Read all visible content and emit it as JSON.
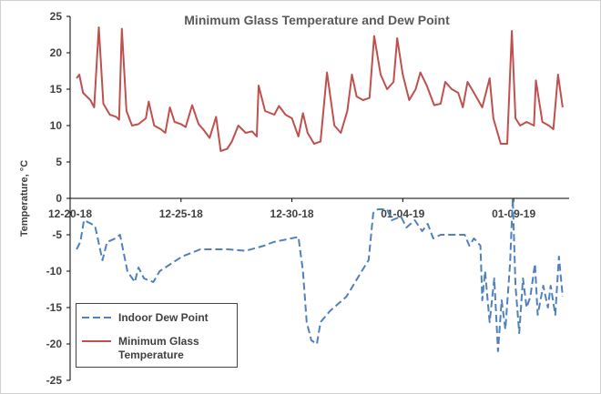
{
  "chart_data": {
    "type": "line",
    "title": "Minimum Glass Temperature and Dew Point",
    "y_label": "Temperature, °C",
    "xlim": [
      "2018-12-20 00:00",
      "2019-01-11 12:00"
    ],
    "xticks": [
      {
        "value": "2018-12-20",
        "label": "12-20-18"
      },
      {
        "value": "2018-12-25",
        "label": "12-25-18"
      },
      {
        "value": "2018-12-30",
        "label": "12-30-18"
      },
      {
        "value": "2019-01-04",
        "label": "01-04-19"
      },
      {
        "value": "2019-01-09",
        "label": "01-09-19"
      }
    ],
    "ylim": [
      -25,
      25
    ],
    "yticks": [
      -25,
      -20,
      -15,
      -10,
      -5,
      0,
      5,
      10,
      15,
      20,
      25
    ],
    "grid": false,
    "legend": "lower-left",
    "series": [
      {
        "name": "Indoor Dew Point",
        "color": "#4f81bd",
        "dashed": true,
        "x": [
          "2018-12-20 07:00",
          "2018-12-20 11:00",
          "2018-12-20 15:00",
          "2018-12-20 23:00",
          "2018-12-21 03:00",
          "2018-12-21 11:00",
          "2018-12-21 16:00",
          "2018-12-22 01:00",
          "2018-12-22 06:00",
          "2018-12-22 14:00",
          "2018-12-22 22:00",
          "2018-12-23 02:00",
          "2018-12-23 08:00",
          "2018-12-23 18:00",
          "2018-12-24 01:00",
          "2018-12-25 01:00",
          "2018-12-25 21:00",
          "2018-12-27 02:00",
          "2018-12-27 22:00",
          "2018-12-28 18:00",
          "2018-12-29 04:00",
          "2018-12-30 07:00",
          "2018-12-30 12:00",
          "2018-12-30 16:00",
          "2018-12-30 21:00",
          "2018-12-31 03:00",
          "2018-12-31 07:00",
          "2018-12-31 17:00",
          "2019-01-01 11:00",
          "2019-01-02 06:00",
          "2019-01-02 11:00",
          "2019-01-02 16:00",
          "2019-01-02 21:00",
          "2019-01-03 07:00",
          "2019-01-03 12:00",
          "2019-01-03 22:00",
          "2019-01-04 04:00",
          "2019-01-04 13:00",
          "2019-01-04 21:00",
          "2019-01-05 03:00",
          "2019-01-05 09:00",
          "2019-01-05 17:00",
          "2019-01-06 09:00",
          "2019-01-06 19:00",
          "2019-01-07 00:00",
          "2019-01-07 05:00",
          "2019-01-07 12:00",
          "2019-01-07 14:00",
          "2019-01-07 17:00",
          "2019-01-07 22:00",
          "2019-01-08 03:00",
          "2019-01-08 07:00",
          "2019-01-08 11:00",
          "2019-01-08 15:00",
          "2019-01-08 20:00",
          "2019-01-08 23:00",
          "2019-01-09 02:00",
          "2019-01-09 06:00",
          "2019-01-09 10:00",
          "2019-01-09 14:00",
          "2019-01-09 18:00",
          "2019-01-09 23:00",
          "2019-01-10 02:00",
          "2019-01-10 08:00",
          "2019-01-10 13:00",
          "2019-01-10 16:00",
          "2019-01-10 21:00",
          "2019-01-11 01:00",
          "2019-01-11 05:00"
        ],
        "values": [
          -7,
          -6,
          -3,
          -3.5,
          -3.8,
          -8.5,
          -6,
          -5.5,
          -5,
          -10,
          -11.5,
          -9.5,
          -11,
          -11.5,
          -10,
          -8,
          -7,
          -7,
          -7.2,
          -6.5,
          -6,
          -5.3,
          -10,
          -17,
          -19.5,
          -20,
          -17,
          -15.5,
          -13.5,
          -9.5,
          -8.5,
          -2,
          -1.5,
          -1.5,
          -3,
          -2.5,
          -4,
          -3,
          -4.5,
          -3.5,
          -5.5,
          -5,
          -5,
          -5,
          -6.5,
          -5.5,
          -6.5,
          -14,
          -10,
          -17,
          -11,
          -21,
          -14,
          -18,
          -9,
          0,
          -12,
          -18.5,
          -11,
          -15,
          -13.5,
          -9,
          -16,
          -12,
          -15,
          -12,
          -16,
          -8,
          -13.5
        ]
      },
      {
        "name": "Minimum Glass Temperature",
        "color": "#c0504d",
        "dashed": false,
        "x": [
          "2018-12-20 07:00",
          "2018-12-20 10:00",
          "2018-12-20 14:00",
          "2018-12-20 22:00",
          "2018-12-21 02:00",
          "2018-12-21 07:00",
          "2018-12-21 12:00",
          "2018-12-21 19:00",
          "2018-12-22 02:00",
          "2018-12-22 05:00",
          "2018-12-22 08:00",
          "2018-12-22 13:00",
          "2018-12-22 19:00",
          "2018-12-23 02:00",
          "2018-12-23 10:00",
          "2018-12-23 13:00",
          "2018-12-23 19:00",
          "2018-12-24 02:00",
          "2018-12-24 07:00",
          "2018-12-24 12:00",
          "2018-12-24 17:00",
          "2018-12-25 00:00",
          "2018-12-25 05:00",
          "2018-12-25 12:00",
          "2018-12-25 19:00",
          "2018-12-26 00:00",
          "2018-12-26 07:00",
          "2018-12-26 14:00",
          "2018-12-26 19:00",
          "2018-12-27 02:00",
          "2018-12-27 07:00",
          "2018-12-27 14:00",
          "2018-12-27 22:00",
          "2018-12-28 05:00",
          "2018-12-28 10:00",
          "2018-12-28 12:00",
          "2018-12-28 19:00",
          "2018-12-29 05:00",
          "2018-12-29 10:00",
          "2018-12-29 17:00",
          "2018-12-30 00:00",
          "2018-12-30 07:00",
          "2018-12-30 12:00",
          "2018-12-30 17:00",
          "2018-12-31 00:00",
          "2018-12-31 07:00",
          "2018-12-31 14:00",
          "2018-12-31 22:00",
          "2019-01-01 05:00",
          "2019-01-01 12:00",
          "2019-01-01 17:00",
          "2019-01-01 22:00",
          "2019-01-02 05:00",
          "2019-01-02 12:00",
          "2019-01-02 17:00",
          "2019-01-03 00:00",
          "2019-01-03 07:00",
          "2019-01-03 14:00",
          "2019-01-03 18:00",
          "2019-01-04 00:00",
          "2019-01-04 07:00",
          "2019-01-04 14:00",
          "2019-01-04 19:00",
          "2019-01-05 02:00",
          "2019-01-05 10:00",
          "2019-01-05 17:00",
          "2019-01-05 22:00",
          "2019-01-06 05:00",
          "2019-01-06 12:00",
          "2019-01-06 17:00",
          "2019-01-06 22:00",
          "2019-01-07 05:00",
          "2019-01-07 14:00",
          "2019-01-07 22:00",
          "2019-01-08 02:00",
          "2019-01-08 10:00",
          "2019-01-08 17:00",
          "2019-01-08 22:00",
          "2019-01-09 02:00",
          "2019-01-09 07:00",
          "2019-01-09 14:00",
          "2019-01-09 22:00",
          "2019-01-10 00:00",
          "2019-01-10 07:00",
          "2019-01-10 14:00",
          "2019-01-10 19:00",
          "2019-01-11 00:00",
          "2019-01-11 05:00"
        ],
        "values": [
          16.5,
          17,
          14.5,
          13.5,
          12.5,
          23.5,
          13,
          11.5,
          11.2,
          10.8,
          23.3,
          12,
          10,
          10.2,
          11,
          13.3,
          10,
          9.5,
          9,
          12.5,
          10.5,
          10.2,
          9.8,
          12.8,
          10.2,
          9.5,
          8.3,
          11.2,
          6.5,
          6.8,
          7.8,
          10,
          9,
          9.2,
          8.5,
          15.5,
          12,
          11.5,
          12.7,
          11.5,
          11,
          8.5,
          11.7,
          9,
          7.5,
          7.8,
          17.3,
          10,
          9,
          12,
          17,
          14,
          13.5,
          13.8,
          22.3,
          17,
          15,
          16,
          22,
          17,
          13.5,
          15,
          17.3,
          15.5,
          12.8,
          13,
          16,
          15,
          14.5,
          12.5,
          16,
          14.5,
          12.5,
          16.5,
          11,
          7.5,
          7.5,
          23,
          11,
          10,
          10.5,
          10,
          16.2,
          10.5,
          10,
          9.5,
          17,
          12.5
        ]
      }
    ]
  }
}
